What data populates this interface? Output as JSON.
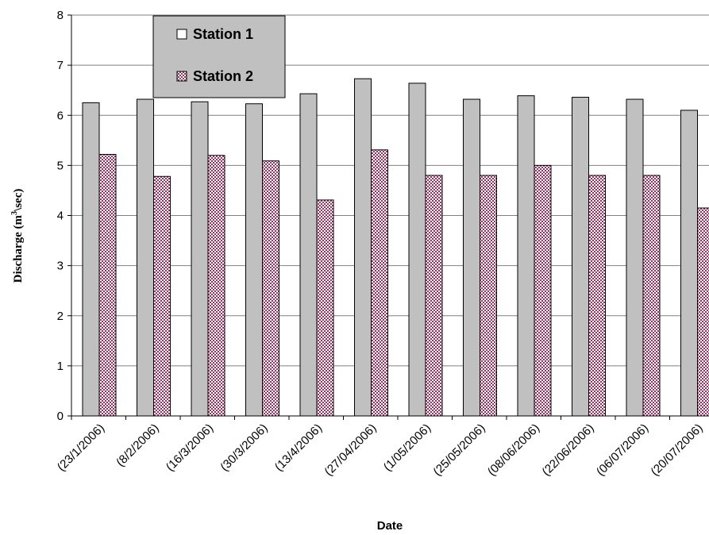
{
  "chart_data": {
    "type": "bar",
    "categories": [
      "(23/1/2006)",
      "(8/2/2006)",
      "(16/3/2006)",
      "(30/3/2006)",
      "(13/4/2006)",
      "(27/04/2006)",
      "(1/05/2006)",
      "(25/05/2006)",
      "(08/06/2006)",
      "(22/06/2006)",
      "(06/07/2006)",
      "(20/07/2006)"
    ],
    "series": [
      {
        "name": "Station 1",
        "values": [
          6.25,
          6.32,
          6.27,
          6.23,
          6.43,
          6.73,
          6.64,
          6.32,
          6.39,
          6.36,
          6.32,
          6.1
        ],
        "color": "#c0c0c0",
        "pattern": "solid"
      },
      {
        "name": "Station 2",
        "values": [
          5.22,
          4.78,
          5.2,
          5.09,
          4.31,
          5.31,
          4.8,
          4.8,
          5.0,
          4.8,
          4.8,
          4.15
        ],
        "color": "#993366",
        "pattern": "checker"
      }
    ],
    "xlabel": "Date",
    "ylabel_main": "Discharge (m",
    "ylabel_sup": "3",
    "ylabel_tail": "\\sec)",
    "ylim": [
      0,
      8
    ],
    "yticks": [
      "0",
      "1",
      "2",
      "3",
      "4",
      "5",
      "6",
      "7",
      "8"
    ],
    "grid": true,
    "legend_position": "top-left"
  }
}
